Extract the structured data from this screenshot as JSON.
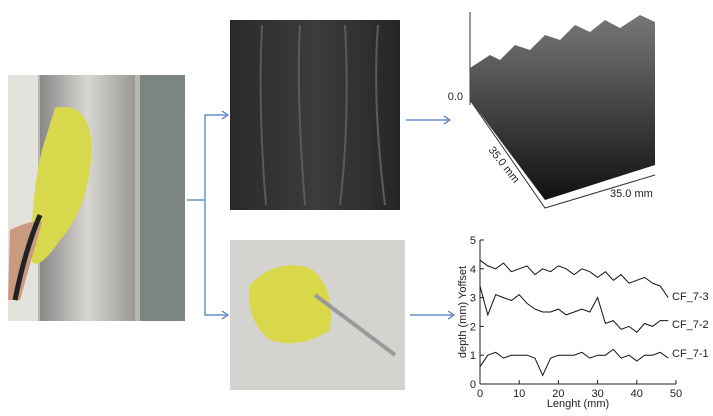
{
  "surface_plot": {
    "z_label": "0.0",
    "y_axis_label": "35.0 mm",
    "x_axis_label": "35.0 mm"
  },
  "chart_data": {
    "type": "line",
    "x_label": "Lenght (mm)",
    "y_label": "depth (mm) Yoffset",
    "x": [
      0,
      2,
      4,
      6,
      8,
      10,
      12,
      14,
      16,
      18,
      20,
      22,
      24,
      26,
      28,
      30,
      32,
      34,
      36,
      38,
      40,
      42,
      44,
      46,
      48
    ],
    "series": [
      {
        "name": "CF_7-3",
        "color": "#111111",
        "values": [
          4.3,
          4.1,
          4.0,
          4.2,
          3.9,
          4.0,
          4.1,
          3.8,
          4.0,
          3.9,
          4.1,
          4.0,
          3.8,
          4.0,
          3.9,
          3.7,
          3.9,
          3.6,
          3.8,
          3.5,
          3.6,
          3.7,
          3.5,
          3.4,
          3.0
        ]
      },
      {
        "name": "CF_7-2",
        "color": "#111111",
        "values": [
          3.4,
          2.4,
          3.1,
          3.0,
          2.9,
          3.1,
          2.8,
          2.6,
          2.5,
          2.5,
          2.6,
          2.4,
          2.5,
          2.6,
          2.5,
          3.0,
          2.1,
          2.2,
          1.9,
          2.0,
          1.8,
          2.1,
          2.0,
          2.2,
          2.2
        ]
      },
      {
        "name": "CF_7-1",
        "color": "#111111",
        "values": [
          0.6,
          1.0,
          1.1,
          0.9,
          1.0,
          1.0,
          1.0,
          0.9,
          0.3,
          0.9,
          1.0,
          1.0,
          1.0,
          1.1,
          0.9,
          1.0,
          1.0,
          1.2,
          0.9,
          1.0,
          0.8,
          1.0,
          1.0,
          1.1,
          0.9
        ]
      }
    ],
    "xlim": [
      0,
      50
    ],
    "ylim": [
      0,
      5
    ],
    "xticks": [
      0,
      10,
      20,
      30,
      40,
      50
    ],
    "yticks": [
      0,
      1,
      2,
      3,
      4,
      5
    ]
  }
}
